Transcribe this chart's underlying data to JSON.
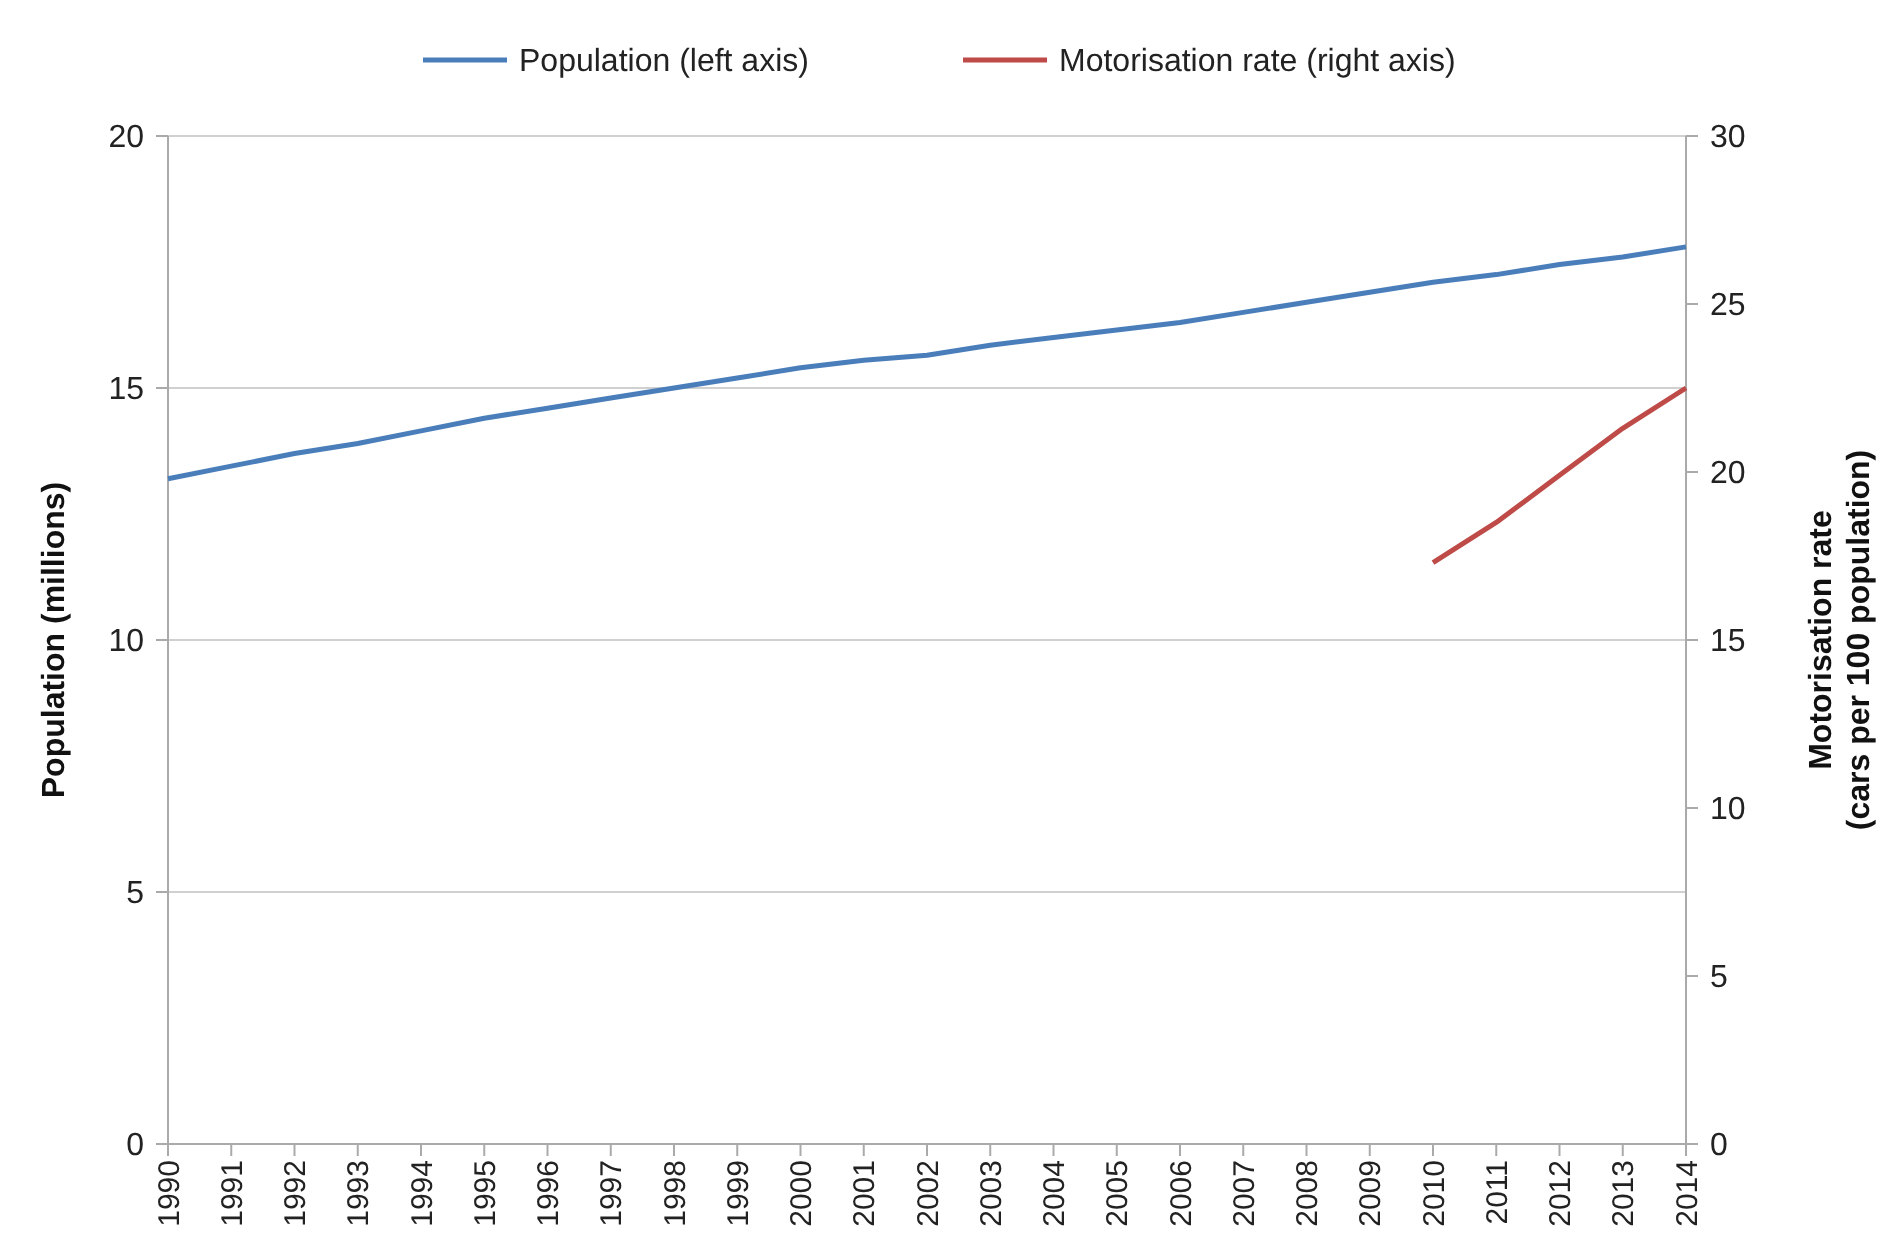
{
  "chart_data": {
    "type": "line",
    "categories": [
      "1990",
      "1991",
      "1992",
      "1993",
      "1994",
      "1995",
      "1996",
      "1997",
      "1998",
      "1999",
      "2000",
      "2001",
      "2002",
      "2003",
      "2004",
      "2005",
      "2006",
      "2007",
      "2008",
      "2009",
      "2010",
      "2011",
      "2012",
      "2013",
      "2014"
    ],
    "ylabel": "Population (millions)",
    "y2label": "Motorisation rate\n(cars per 100 population)",
    "ylim": [
      0,
      20
    ],
    "yticks": [
      0,
      5,
      10,
      15,
      20
    ],
    "y2lim": [
      0,
      30
    ],
    "y2ticks": [
      0,
      5,
      10,
      15,
      20,
      25,
      30
    ],
    "grid": "y",
    "legend": "top",
    "line_style": "solid",
    "series": [
      {
        "name": "Population (left axis)",
        "color": "#4a7ebb",
        "values": [
          13.2,
          13.45,
          13.7,
          13.9,
          14.15,
          14.4,
          14.6,
          14.8,
          15.0,
          15.2,
          15.4,
          15.55,
          15.65,
          15.85,
          16.0,
          16.15,
          16.3,
          16.5,
          16.7,
          16.9,
          17.1,
          17.25,
          17.45,
          17.6,
          17.8
        ]
      },
      {
        "name": "Motorisation rate (right axis)",
        "color": "#be4b48",
        "axis": "y2",
        "values": [
          null,
          null,
          null,
          null,
          null,
          null,
          null,
          null,
          null,
          null,
          null,
          null,
          null,
          null,
          null,
          null,
          null,
          null,
          null,
          null,
          17.3,
          18.5,
          19.9,
          21.3,
          22.5
        ]
      }
    ]
  }
}
